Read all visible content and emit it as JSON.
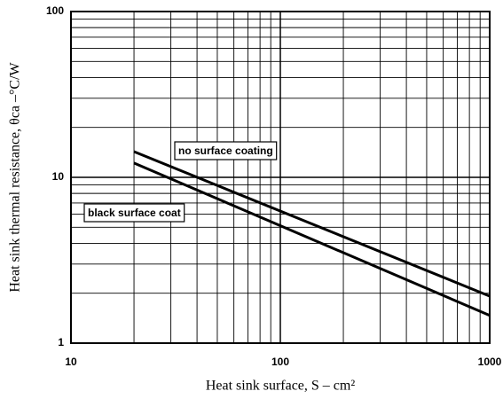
{
  "chart_data": {
    "type": "line",
    "x_label": "Heat sink surface, S – cm²",
    "y_label": "Heat sink thermal resistance, θca –°C/W",
    "series": [
      {
        "name": "no surface coating",
        "color": "#000000",
        "x": [
          20,
          1000
        ],
        "values": [
          14.3,
          1.92
        ]
      },
      {
        "name": "black surface coat",
        "color": "#000000",
        "x": [
          20,
          1000
        ],
        "values": [
          12.2,
          1.47
        ]
      }
    ],
    "xlim": [
      10,
      1000
    ],
    "ylim": [
      1,
      100
    ],
    "xticks": [
      10,
      100,
      1000
    ],
    "yticks": [
      1,
      10,
      100
    ],
    "x_minor_ticks": [
      20,
      30,
      40,
      50,
      60,
      70,
      80,
      90,
      200,
      300,
      400,
      500,
      600,
      700,
      800,
      900
    ],
    "y_minor_ticks": [
      2,
      3,
      4,
      5,
      6,
      7,
      8,
      9,
      20,
      30,
      40,
      50,
      60,
      70,
      80,
      90
    ],
    "xscale": "log",
    "yscale": "log",
    "grid": true
  }
}
